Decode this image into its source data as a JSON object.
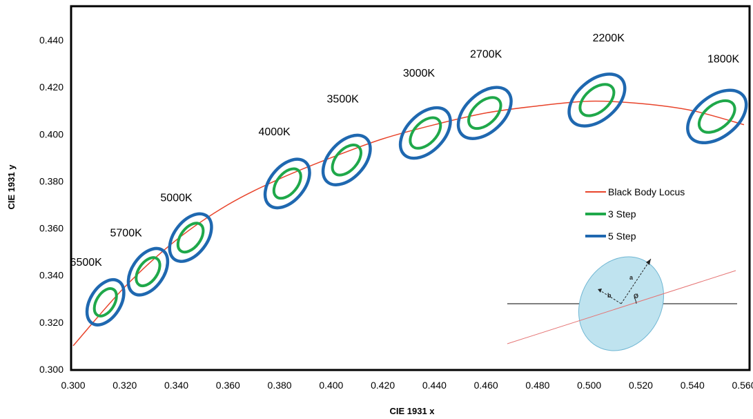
{
  "chart_data": {
    "type": "scatter",
    "title": "",
    "xlabel": "CIE 1931 x",
    "ylabel": "CIE 1931 y",
    "xlim": [
      0.3,
      0.56
    ],
    "ylim": [
      0.3,
      0.45
    ],
    "x_ticks": [
      "0.300",
      "0.320",
      "0.340",
      "0.360",
      "0.380",
      "0.400",
      "0.420",
      "0.440",
      "0.460",
      "0.480",
      "0.500",
      "0.520",
      "0.540",
      "0.560"
    ],
    "y_ticks": [
      "0.300",
      "0.320",
      "0.340",
      "0.360",
      "0.380",
      "0.400",
      "0.420",
      "0.440"
    ],
    "grid": false,
    "legend_placement": "right",
    "series": [
      {
        "name": "Black Body Locus",
        "kind": "curve",
        "color": "#e8432a",
        "points": [
          [
            0.3,
            0.31
          ],
          [
            0.32,
            0.335
          ],
          [
            0.34,
            0.355
          ],
          [
            0.36,
            0.37
          ],
          [
            0.38,
            0.381
          ],
          [
            0.4,
            0.39
          ],
          [
            0.42,
            0.398
          ],
          [
            0.44,
            0.404
          ],
          [
            0.46,
            0.409
          ],
          [
            0.48,
            0.412
          ],
          [
            0.5,
            0.414
          ],
          [
            0.52,
            0.413
          ],
          [
            0.54,
            0.41
          ],
          [
            0.56,
            0.404
          ]
        ]
      },
      {
        "name": "3 Step",
        "kind": "ellipse",
        "color": "#1fa84a"
      },
      {
        "name": "5 Step",
        "kind": "ellipse",
        "color": "#1f68b0"
      }
    ],
    "ellipses": [
      {
        "label": "6500K",
        "cx": 0.3125,
        "cy": 0.3285,
        "label_x": 0.305,
        "label_y": 0.344
      },
      {
        "label": "5700K",
        "cx": 0.329,
        "cy": 0.3415,
        "label_x": 0.3205,
        "label_y": 0.3565
      },
      {
        "label": "5000K",
        "cx": 0.3455,
        "cy": 0.356,
        "label_x": 0.34,
        "label_y": 0.3715
      },
      {
        "label": "4000K",
        "cx": 0.383,
        "cy": 0.379,
        "label_x": 0.378,
        "label_y": 0.3995
      },
      {
        "label": "3500K",
        "cx": 0.406,
        "cy": 0.389,
        "label_x": 0.4045,
        "label_y": 0.4135
      },
      {
        "label": "3000K",
        "cx": 0.4365,
        "cy": 0.4005,
        "label_x": 0.434,
        "label_y": 0.4245
      },
      {
        "label": "2700K",
        "cx": 0.4595,
        "cy": 0.409,
        "label_x": 0.46,
        "label_y": 0.4325
      },
      {
        "label": "2200K",
        "cx": 0.503,
        "cy": 0.4145,
        "label_x": 0.5075,
        "label_y": 0.4395
      },
      {
        "label": "1800K",
        "cx": 0.5495,
        "cy": 0.4075,
        "label_x": 0.552,
        "label_y": 0.4305
      }
    ],
    "legend": [
      "Black Body Locus",
      "3 Step",
      "5 Step"
    ],
    "inset_labels": [
      "a",
      "b",
      "Ø"
    ]
  }
}
